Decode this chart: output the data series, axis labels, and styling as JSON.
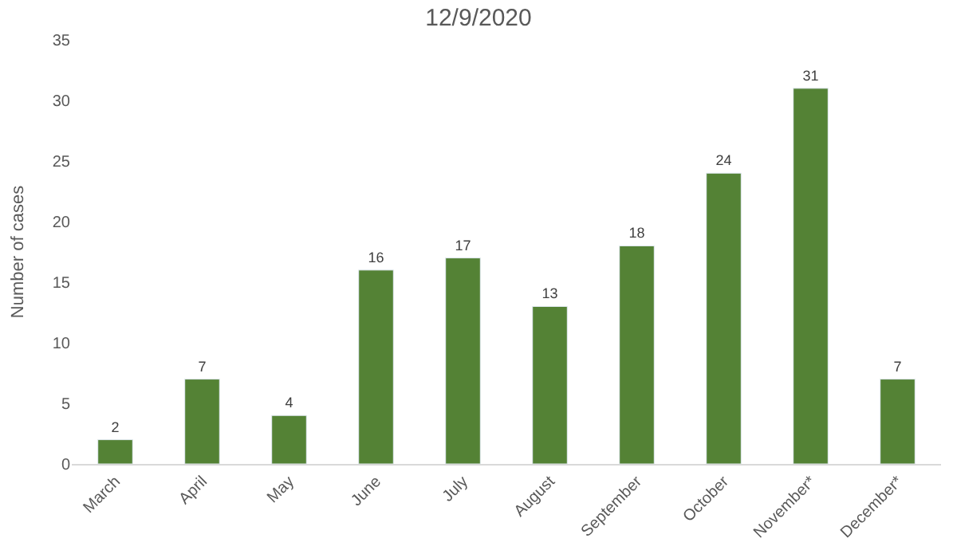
{
  "chart_data": {
    "type": "bar",
    "title": "12/9/2020",
    "ylabel": "Number of cases",
    "categories": [
      "March",
      "April",
      "May",
      "June",
      "July",
      "August",
      "September",
      "October",
      "November*",
      "December*"
    ],
    "values": [
      2,
      7,
      4,
      16,
      17,
      13,
      18,
      24,
      31,
      7
    ],
    "color": "#548235",
    "ylim": [
      0,
      35
    ],
    "yticks": [
      0,
      5,
      10,
      15,
      20,
      25,
      30,
      35
    ],
    "grid": false,
    "data_labels": true
  }
}
